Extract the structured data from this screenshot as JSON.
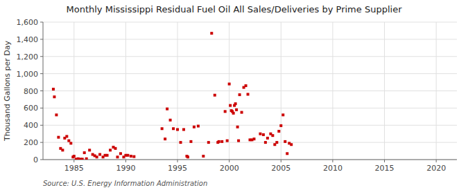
{
  "chart_data": {
    "type": "scatter",
    "title": "Monthly Mississippi Residual Fuel Oil All Sales/Deliveries by Prime Supplier",
    "y_label": "Thousand Gallons per Day",
    "annotations": [
      "Source: U.S. Energy Information Administration"
    ],
    "color": "#cc0000",
    "marker": "square",
    "grid": true,
    "xlim": [
      1982,
      2022
    ],
    "ylim": [
      0,
      1600
    ],
    "xticks": [
      1985,
      1990,
      1995,
      2000,
      2005,
      2010,
      2015,
      2020
    ],
    "yticks": [
      0,
      200,
      400,
      600,
      800,
      {
        "value": 1000,
        "label": "1,000"
      },
      {
        "value": 1200,
        "label": "1,200"
      },
      {
        "value": 1400,
        "label": "1,400"
      },
      {
        "value": 1600,
        "label": "1,600"
      }
    ],
    "x": [
      1983.0,
      1983.1,
      1983.3,
      1983.5,
      1983.7,
      1983.9,
      1984.1,
      1984.3,
      1984.5,
      1984.7,
      1984.9,
      1985.0,
      1985.2,
      1985.4,
      1985.6,
      1985.8,
      1986.0,
      1986.2,
      1986.5,
      1986.8,
      1987.0,
      1987.2,
      1987.5,
      1987.8,
      1988.0,
      1988.2,
      1988.5,
      1988.8,
      1989.0,
      1989.2,
      1989.5,
      1989.8,
      1990.0,
      1990.2,
      1990.5,
      1990.8,
      1993.5,
      1993.8,
      1994.0,
      1994.3,
      1994.6,
      1995.0,
      1995.3,
      1995.6,
      1995.9,
      1996.0,
      1996.3,
      1996.6,
      1997.0,
      1997.5,
      1998.0,
      1998.3,
      1998.6,
      1998.9,
      1999.0,
      1999.3,
      1999.6,
      1999.8,
      2000.0,
      2000.1,
      2000.2,
      2000.3,
      2000.4,
      2000.5,
      2000.6,
      2000.7,
      2000.8,
      2000.9,
      2001.0,
      2001.2,
      2001.4,
      2001.6,
      2001.8,
      2002.0,
      2002.2,
      2002.4,
      2003.0,
      2003.3,
      2003.5,
      2003.7,
      2004.0,
      2004.2,
      2004.4,
      2004.6,
      2004.8,
      2005.0,
      2005.2,
      2005.4,
      2005.6,
      2005.8,
      2006.0
    ],
    "values": [
      820,
      730,
      520,
      260,
      130,
      110,
      250,
      270,
      220,
      190,
      30,
      40,
      5,
      10,
      5,
      5,
      80,
      10,
      110,
      60,
      45,
      30,
      60,
      30,
      50,
      50,
      110,
      145,
      130,
      30,
      70,
      30,
      50,
      50,
      40,
      35,
      360,
      240,
      590,
      460,
      360,
      350,
      200,
      350,
      40,
      30,
      210,
      380,
      390,
      40,
      200,
      1470,
      750,
      200,
      210,
      210,
      560,
      220,
      880,
      630,
      570,
      560,
      540,
      630,
      650,
      580,
      380,
      220,
      755,
      550,
      840,
      860,
      760,
      230,
      230,
      240,
      300,
      290,
      200,
      250,
      300,
      280,
      175,
      200,
      330,
      395,
      520,
      210,
      70,
      190,
      175
    ]
  }
}
